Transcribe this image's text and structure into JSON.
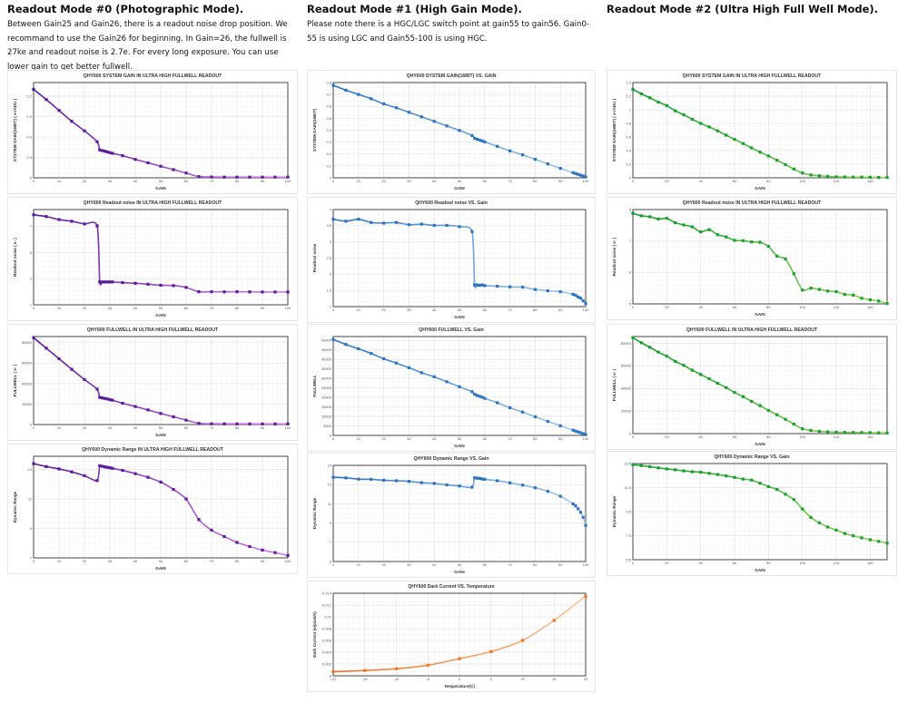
{
  "columns": [
    {
      "title": "Readout Mode #0 (Photographic Mode).",
      "description": "Between Gain25 and Gain26, there is a readout noise drop position. We recommand to use the Gain26 for beginning. In Gain=26, the fullwell is 27ke and readout noise is 2.7e. For every long exposure. You can use lower gain to get better fullwell."
    },
    {
      "title": "Readout Mode #1 (High Gain Mode).",
      "description": "Please note there is a HGC/LGC switch point at gain55 to gain56. Gain0-55 is using LGC and Gain55-100 is using HGC."
    },
    {
      "title": "Readout Mode #2 (Ultra High Full Well Mode).",
      "description": ""
    }
  ],
  "colors": {
    "mode0": "#5b1a9e",
    "mode0_light": "#d47de6",
    "mode1": "#2c73c2",
    "mode1_light": "#a8cdf0",
    "mode2": "#16a02f",
    "mode2_light": "#9ad45a",
    "dark": "#f07222",
    "dark_light": "#f8c39a"
  },
  "chart_data": [
    {
      "type": "line",
      "title": "QHY600 SYSTEM GAIN  IN ULTRA HIGH FULLWELL READOUT",
      "xlabel": "GAIN",
      "ylabel": "SYSTEM GAIN(16BIT) ( e-/ADU )",
      "xlim": [
        0,
        100
      ],
      "ylim": [
        0,
        1.4
      ],
      "xticks": [
        0,
        10,
        20,
        30,
        40,
        50,
        60,
        70,
        80,
        90,
        100
      ],
      "yticks": [
        0,
        0.3,
        0.6,
        0.9,
        1.2
      ],
      "grid": true,
      "color": "#5b1a9e",
      "color2": "#d47de6",
      "x": [
        0,
        5,
        10,
        15,
        20,
        25,
        26,
        27,
        28,
        29,
        30,
        31,
        35,
        40,
        45,
        50,
        55,
        60,
        65,
        70,
        75,
        80,
        85,
        90,
        95,
        100
      ],
      "y": [
        1.3,
        1.15,
        0.99,
        0.83,
        0.69,
        0.53,
        0.41,
        0.4,
        0.39,
        0.38,
        0.37,
        0.36,
        0.325,
        0.27,
        0.22,
        0.17,
        0.12,
        0.07,
        0.017,
        0.012,
        0.01,
        0.01,
        0.01,
        0.01,
        0.01,
        0.01
      ]
    },
    {
      "type": "line",
      "title": "QHY600 Readout noise IN ULTRA HIGH FULLWELL READOUT",
      "xlabel": "GAIN",
      "ylabel": "Readout noise ( e- )",
      "xlim": [
        0,
        100
      ],
      "ylim": [
        1,
        8.3
      ],
      "xticks": [
        0,
        10,
        20,
        30,
        40,
        50,
        60,
        70,
        80,
        90,
        100
      ],
      "yticks": [
        1,
        3,
        5,
        7
      ],
      "grid": true,
      "color": "#5b1a9e",
      "color2": "#d47de6",
      "x": [
        0,
        5,
        10,
        15,
        20,
        25,
        26,
        27,
        28,
        29,
        30,
        31,
        35,
        40,
        45,
        50,
        55,
        60,
        65,
        70,
        75,
        80,
        85,
        90,
        95,
        100
      ],
      "y": [
        7.9,
        7.76,
        7.53,
        7.4,
        7.2,
        7.05,
        2.76,
        2.75,
        2.75,
        2.75,
        2.75,
        2.75,
        2.7,
        2.65,
        2.58,
        2.5,
        2.47,
        2.33,
        2.0,
        2.0,
        1.99,
        2.0,
        1.99,
        1.98,
        1.98,
        1.98
      ]
    },
    {
      "type": "line",
      "title": "QHY600 FULLWELL IN ULTRA HIGH FULLWELL READOUT",
      "xlabel": "GAIN",
      "ylabel": "FULLWELL ( e- )",
      "xlim": [
        0,
        100
      ],
      "ylim": [
        0,
        86000
      ],
      "xticks": [
        0,
        10,
        20,
        30,
        40,
        50,
        60,
        70,
        80,
        90,
        100
      ],
      "yticks": [
        0,
        20000,
        40000,
        60000,
        80000
      ],
      "grid": true,
      "color": "#5b1a9e",
      "color2": "#d47de6",
      "x": [
        0,
        5,
        10,
        15,
        20,
        25,
        26,
        27,
        28,
        29,
        30,
        31,
        35,
        40,
        45,
        50,
        55,
        60,
        65,
        70,
        75,
        80,
        85,
        90,
        95,
        100
      ],
      "y": [
        84900,
        74600,
        64300,
        54000,
        44000,
        34600,
        26500,
        26000,
        25500,
        25000,
        24300,
        23800,
        20800,
        17600,
        14300,
        10800,
        7600,
        4300,
        1100,
        700,
        650,
        620,
        600,
        600,
        600,
        600
      ]
    },
    {
      "type": "line",
      "title": "QHY600 Dynamic Range IN ULTRA HIGH FULLWELL READOUT",
      "xlabel": "GAIN",
      "ylabel": "Dynamic Range",
      "xlim": [
        0,
        100
      ],
      "ylim": [
        7,
        13.9
      ],
      "xticks": [
        0,
        10,
        20,
        30,
        40,
        50,
        60,
        70,
        80,
        90,
        100
      ],
      "yticks": [
        7,
        9,
        11,
        13
      ],
      "grid": true,
      "color": "#5b1a9e",
      "color2": "#d47de6",
      "x": [
        0,
        5,
        10,
        15,
        20,
        25,
        26,
        27,
        28,
        29,
        30,
        31,
        35,
        40,
        45,
        50,
        55,
        60,
        65,
        70,
        75,
        80,
        85,
        90,
        95,
        100
      ],
      "y": [
        13.4,
        13.2,
        13.04,
        12.84,
        12.58,
        12.25,
        13.26,
        13.22,
        13.18,
        13.15,
        13.12,
        13.08,
        12.94,
        12.72,
        12.47,
        12.15,
        11.65,
        11.0,
        9.6,
        8.88,
        8.45,
        8.05,
        7.77,
        7.53,
        7.36,
        7.16
      ]
    },
    {
      "type": "line",
      "title": "QHY600 SYSTEM GAIN(16BIT) VS. GAIN",
      "xlabel": "GAIN",
      "ylabel": "SYSTEM GAIN(16BIT)",
      "xlim": [
        0,
        100
      ],
      "ylim": [
        0,
        0.8
      ],
      "xticks": [
        0,
        10,
        20,
        30,
        40,
        50,
        60,
        70,
        80,
        90,
        100
      ],
      "yticks": [
        0,
        0.1,
        0.2,
        0.3,
        0.4,
        0.5,
        0.6,
        0.7,
        0.8
      ],
      "grid": true,
      "color": "#2c73c2",
      "color2": "#a8cdf0",
      "x": [
        0,
        5,
        10,
        15,
        20,
        25,
        30,
        35,
        40,
        45,
        50,
        55,
        56,
        57,
        58,
        59,
        60,
        65,
        70,
        75,
        80,
        85,
        90,
        95,
        96,
        97,
        98,
        99,
        100
      ],
      "y": [
        0.777,
        0.736,
        0.7,
        0.664,
        0.621,
        0.588,
        0.55,
        0.512,
        0.474,
        0.436,
        0.398,
        0.355,
        0.331,
        0.324,
        0.317,
        0.31,
        0.302,
        0.264,
        0.226,
        0.193,
        0.155,
        0.117,
        0.079,
        0.043,
        0.036,
        0.029,
        0.022,
        0.015,
        0.007
      ]
    },
    {
      "type": "line",
      "title": "QHY600 Readout noise VS. Gain",
      "xlabel": "GAIN",
      "ylabel": "Readout noise",
      "xlim": [
        0,
        100
      ],
      "ylim": [
        1,
        4
      ],
      "xticks": [
        0,
        10,
        20,
        30,
        40,
        50,
        60,
        70,
        80,
        90,
        100
      ],
      "yticks": [
        1,
        1.5,
        2,
        2.5,
        3,
        3.5,
        4
      ],
      "grid": true,
      "color": "#2c73c2",
      "color2": "#a8cdf0",
      "x": [
        0,
        5,
        10,
        15,
        20,
        25,
        30,
        35,
        40,
        45,
        50,
        55,
        56,
        57,
        58,
        59,
        60,
        65,
        70,
        75,
        80,
        85,
        90,
        95,
        96,
        97,
        98,
        99,
        100
      ],
      "y": [
        3.7,
        3.64,
        3.7,
        3.6,
        3.58,
        3.6,
        3.53,
        3.55,
        3.51,
        3.51,
        3.47,
        3.32,
        1.67,
        1.67,
        1.66,
        1.67,
        1.65,
        1.63,
        1.61,
        1.6,
        1.53,
        1.49,
        1.46,
        1.38,
        1.35,
        1.3,
        1.26,
        1.18,
        1.1
      ]
    },
    {
      "type": "line",
      "title": "QHY600 FULLWELL VS. Gain",
      "xlabel": "GAIN",
      "ylabel": "FULLWELL",
      "xlim": [
        0,
        100
      ],
      "ylim": [
        0,
        52000
      ],
      "xticks": [
        0,
        10,
        20,
        30,
        40,
        50,
        60,
        70,
        80,
        90,
        100
      ],
      "yticks": [
        0,
        5000,
        10000,
        15000,
        20000,
        25000,
        30000,
        35000,
        40000,
        45000,
        50000
      ],
      "grid": true,
      "color": "#2c73c2",
      "color2": "#a8cdf0",
      "x": [
        0,
        5,
        10,
        15,
        20,
        25,
        30,
        35,
        40,
        45,
        50,
        55,
        56,
        57,
        58,
        59,
        60,
        65,
        70,
        75,
        80,
        85,
        90,
        95,
        96,
        97,
        98,
        99,
        100
      ],
      "y": [
        50460,
        47850,
        45550,
        43100,
        40340,
        38040,
        35580,
        32980,
        30830,
        28220,
        25610,
        23000,
        21630,
        21010,
        20550,
        20090,
        19480,
        17180,
        14570,
        12270,
        9820,
        7360,
        5060,
        2760,
        2300,
        1840,
        1380,
        920,
        460
      ]
    },
    {
      "type": "line",
      "title": "QHY600 Dynamic Range VS. Gain",
      "xlabel": "GAIN",
      "ylabel": "Dynamic Range",
      "xlim": [
        0,
        100
      ],
      "ylim": [
        5,
        15
      ],
      "xticks": [
        0,
        10,
        20,
        30,
        40,
        50,
        60,
        70,
        80,
        90,
        100
      ],
      "yticks": [
        5,
        7,
        9,
        11,
        13,
        15
      ],
      "grid": true,
      "color": "#2c73c2",
      "color2": "#a8cdf0",
      "x": [
        0,
        5,
        10,
        15,
        20,
        25,
        30,
        35,
        40,
        45,
        50,
        55,
        56,
        57,
        58,
        59,
        60,
        65,
        70,
        75,
        80,
        85,
        90,
        95,
        96,
        97,
        98,
        99,
        100
      ],
      "y": [
        13.76,
        13.7,
        13.57,
        13.55,
        13.45,
        13.4,
        13.33,
        13.2,
        13.12,
        12.97,
        12.85,
        12.73,
        13.7,
        13.67,
        13.64,
        13.58,
        13.55,
        13.4,
        13.18,
        12.94,
        12.67,
        12.3,
        11.79,
        11.0,
        10.79,
        10.48,
        10.12,
        9.6,
        8.76
      ]
    },
    {
      "type": "line",
      "title": "QHY600 Dark Current VS. Temperature",
      "xlabel": "Temperature(C)",
      "ylabel": "Dark Current (e/pixel/s)",
      "xlim": [
        -20,
        20
      ],
      "ylim": [
        0,
        0.014
      ],
      "xticks": [
        -20,
        -15,
        -10,
        -5,
        0,
        5,
        10,
        15,
        20
      ],
      "yticks": [
        0,
        0.002,
        0.004,
        0.006,
        0.008,
        0.01,
        0.012,
        0.014
      ],
      "grid": true,
      "color": "#f07222",
      "color2": "#f8c39a",
      "x": [
        -20,
        -15,
        -10,
        -5,
        0,
        5,
        10,
        15,
        20
      ],
      "y": [
        0.0007,
        0.0009,
        0.0012,
        0.0018,
        0.0029,
        0.0041,
        0.006,
        0.0094,
        0.0135
      ]
    },
    {
      "type": "line",
      "title": "QHY600 SYSTEM GAIN  IN ULTRA HIGH FULLWELL READOUT",
      "xlabel": "GAIN",
      "ylabel": "SYSTEM GAIN(16BIT) ( e-/ADU )",
      "xlim": [
        0,
        150
      ],
      "ylim": [
        0,
        1.4
      ],
      "xticks": [
        0,
        20,
        40,
        60,
        80,
        100,
        120,
        140
      ],
      "yticks": [
        0,
        0.2,
        0.4,
        0.6,
        0.8,
        1,
        1.2,
        1.4
      ],
      "grid": true,
      "color": "#16a02f",
      "color2": "#9ad45a",
      "x": [
        0,
        5,
        10,
        15,
        20,
        25,
        30,
        35,
        40,
        45,
        50,
        55,
        60,
        65,
        70,
        75,
        80,
        85,
        90,
        95,
        100,
        105,
        110,
        115,
        120,
        125,
        130,
        135,
        140,
        145,
        150
      ],
      "y": [
        1.3,
        1.234,
        1.176,
        1.113,
        1.06,
        0.985,
        0.926,
        0.86,
        0.8,
        0.748,
        0.69,
        0.627,
        0.565,
        0.503,
        0.44,
        0.378,
        0.32,
        0.258,
        0.195,
        0.129,
        0.07,
        0.042,
        0.03,
        0.02,
        0.015,
        0.012,
        0.01,
        0.01,
        0.008,
        0.006,
        0.004
      ]
    },
    {
      "type": "line",
      "title": "QHY600 Readout noise IN ULTRA HIGH FULLWELL READOUT",
      "xlabel": "GAIN",
      "ylabel": "Readout noise ( e- )",
      "xlim": [
        0,
        150
      ],
      "ylim": [
        5,
        8
      ],
      "xticks": [
        0,
        20,
        40,
        60,
        80,
        100,
        120,
        140
      ],
      "yticks": [
        5,
        6,
        7,
        8
      ],
      "grid": true,
      "color": "#16a02f",
      "color2": "#9ad45a",
      "x": [
        0,
        5,
        10,
        15,
        20,
        25,
        30,
        35,
        40,
        45,
        50,
        55,
        60,
        65,
        70,
        75,
        80,
        85,
        90,
        95,
        100,
        105,
        110,
        115,
        120,
        125,
        130,
        135,
        140,
        145,
        150
      ],
      "y": [
        7.88,
        7.8,
        7.77,
        7.7,
        7.72,
        7.58,
        7.51,
        7.45,
        7.29,
        7.36,
        7.2,
        7.13,
        7.02,
        7.01,
        6.97,
        6.96,
        6.83,
        6.52,
        6.43,
        5.96,
        5.44,
        5.5,
        5.46,
        5.41,
        5.39,
        5.3,
        5.28,
        5.18,
        5.13,
        5.09,
        5.01
      ]
    },
    {
      "type": "line",
      "title": "QHY600 FULLWELL IN ULTRA HIGH FULLWELL READOUT",
      "xlabel": "GAIN",
      "ylabel": "FULLWELL ( e- )",
      "xlim": [
        0,
        150
      ],
      "ylim": [
        0,
        86000
      ],
      "xticks": [
        0,
        20,
        40,
        60,
        80,
        100,
        120,
        140
      ],
      "yticks": [
        0,
        20000,
        40000,
        60000,
        80000
      ],
      "grid": true,
      "color": "#16a02f",
      "color2": "#9ad45a",
      "x": [
        0,
        5,
        10,
        15,
        20,
        25,
        30,
        35,
        40,
        45,
        50,
        55,
        60,
        65,
        70,
        75,
        80,
        85,
        90,
        95,
        100,
        105,
        110,
        115,
        120,
        125,
        130,
        135,
        140,
        145,
        150
      ],
      "y": [
        85000,
        80500,
        76500,
        72200,
        68600,
        64000,
        60500,
        56200,
        52400,
        48600,
        44600,
        40800,
        36500,
        32700,
        28600,
        24800,
        20500,
        16700,
        12700,
        8400,
        4300,
        2800,
        2000,
        1500,
        1300,
        1100,
        1000,
        900,
        800,
        700,
        600
      ]
    },
    {
      "type": "line",
      "title": "QHY600 Dynamic Range VS. Gain",
      "xlabel": "GAIN",
      "ylabel": "Dynamic Range",
      "xlim": [
        0,
        150
      ],
      "ylim": [
        5.5,
        13.5
      ],
      "xticks": [
        0,
        20,
        40,
        60,
        80,
        100,
        120,
        140
      ],
      "yticks": [
        5.5,
        7.5,
        9.5,
        11.5,
        13.5
      ],
      "grid": true,
      "color": "#16a02f",
      "color2": "#9ad45a",
      "x": [
        0,
        5,
        10,
        15,
        20,
        25,
        30,
        35,
        40,
        45,
        50,
        55,
        60,
        65,
        70,
        75,
        80,
        85,
        90,
        95,
        100,
        105,
        110,
        115,
        120,
        125,
        130,
        135,
        140,
        145,
        150
      ],
      "y": [
        13.4,
        13.33,
        13.24,
        13.14,
        13.05,
        12.98,
        12.89,
        12.82,
        12.78,
        12.68,
        12.59,
        12.47,
        12.35,
        12.21,
        12.12,
        11.86,
        11.58,
        11.35,
        10.95,
        10.5,
        9.72,
        9.02,
        8.57,
        8.22,
        7.96,
        7.68,
        7.49,
        7.32,
        7.16,
        7.02,
        6.88
      ]
    }
  ]
}
